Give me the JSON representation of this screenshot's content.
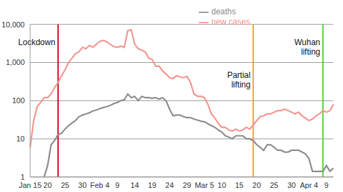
{
  "chart_data": {
    "type": "line",
    "log": "y",
    "grid": true,
    "legend": "upper center",
    "categories": [
      "Jan 15",
      null,
      null,
      null,
      null,
      "20",
      null,
      null,
      null,
      null,
      "25",
      null,
      null,
      null,
      null,
      "30",
      null,
      null,
      null,
      null,
      "Feb 4",
      null,
      null,
      null,
      null,
      "9",
      null,
      null,
      null,
      null,
      "14",
      null,
      null,
      null,
      null,
      "19",
      null,
      null,
      null,
      null,
      "24",
      null,
      null,
      null,
      null,
      "29",
      null,
      null,
      null,
      null,
      "Mar 5",
      null,
      null,
      null,
      null,
      "10",
      null,
      null,
      null,
      null,
      "15",
      null,
      null,
      null,
      null,
      "20",
      null,
      null,
      null,
      null,
      "25",
      null,
      null,
      null,
      null,
      "30",
      null,
      null,
      null,
      null,
      "Apr 4",
      null,
      null,
      null,
      null,
      "9",
      null,
      null
    ],
    "series": [
      {
        "name": "new cases",
        "color": "#f4958f",
        "values": [
          6,
          30,
          70,
          90,
          120,
          120,
          150,
          220,
          300,
          450,
          650,
          1000,
          1300,
          1700,
          1900,
          2500,
          2300,
          2800,
          2500,
          3000,
          3600,
          3800,
          3500,
          3000,
          2600,
          2500,
          2700,
          2500,
          6800,
          7200,
          3000,
          2300,
          2100,
          1900,
          1300,
          1200,
          800,
          800,
          600,
          500,
          400,
          380,
          450,
          420,
          400,
          430,
          300,
          150,
          130,
          130,
          120,
          80,
          45,
          35,
          25,
          20,
          20,
          17,
          16,
          18,
          16,
          17,
          20,
          18,
          23,
          30,
          38,
          40,
          45,
          45,
          50,
          55,
          55,
          60,
          55,
          50,
          45,
          50,
          40,
          35,
          30,
          33,
          40,
          45,
          55,
          50,
          55,
          80
        ]
      },
      {
        "name": "deaths",
        "color": "#8c8c8c",
        "values": [
          null,
          null,
          null,
          null,
          1,
          2,
          7,
          9,
          13,
          14,
          18,
          22,
          26,
          30,
          38,
          42,
          45,
          48,
          54,
          57,
          62,
          66,
          70,
          75,
          84,
          90,
          100,
          105,
          150,
          120,
          130,
          100,
          130,
          120,
          120,
          115,
          120,
          110,
          120,
          100,
          60,
          40,
          42,
          42,
          38,
          36,
          36,
          33,
          31,
          29,
          28,
          25,
          22,
          20,
          17,
          15,
          12,
          11,
          10,
          12,
          12,
          12,
          10,
          10,
          9,
          7,
          6,
          5,
          7,
          7,
          6,
          5,
          5,
          4.5,
          4.5,
          5,
          5,
          5,
          4.5,
          4,
          3,
          1.4,
          1.4,
          1.4,
          1.4,
          2,
          1.4,
          1.7
        ]
      }
    ],
    "ylim": [
      1,
      10000
    ],
    "yticks": [
      1,
      10,
      100,
      {
        "value": 1000,
        "label": "1,000"
      },
      {
        "value": 10000,
        "label": "10,000"
      }
    ],
    "annotations": [
      {
        "text": "Lockdown",
        "x": 8,
        "color": "#d0021b"
      },
      {
        "text": "Partial lifting",
        "x": 64,
        "color": "#f5a623"
      },
      {
        "text": "Wuhan lifting",
        "x": 84,
        "color": "#4cd430"
      }
    ]
  }
}
